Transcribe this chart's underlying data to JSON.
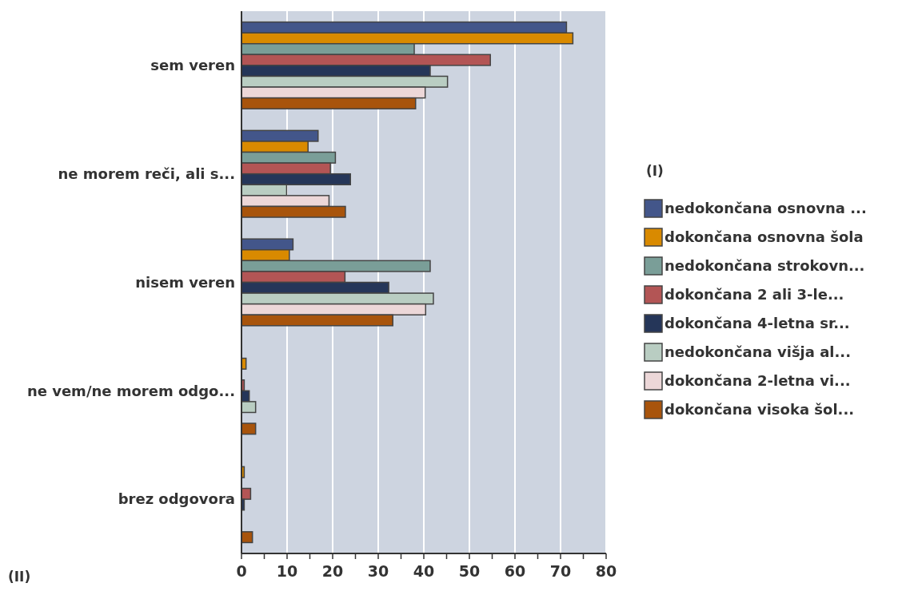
{
  "chart_data": {
    "type": "bar",
    "orientation": "horizontal",
    "categories": [
      "sem veren",
      "ne morem reči, ali s...",
      "nisem veren",
      "ne vem/ne morem odgo...",
      "brez odgovora"
    ],
    "series": [
      {
        "name": "nedokončana osnovna ...",
        "color": "#43568a",
        "values": [
          71.3,
          16.8,
          11.3,
          null,
          null
        ]
      },
      {
        "name": "dokončana osnovna šola",
        "color": "#d98a00",
        "values": [
          72.7,
          14.6,
          10.5,
          1.0,
          0.6
        ]
      },
      {
        "name": "nedokončana strokovn...",
        "color": "#7a9e98",
        "values": [
          37.9,
          20.6,
          41.4,
          null,
          null
        ]
      },
      {
        "name": "dokončana 2 ali 3-le...",
        "color": "#b35555",
        "values": [
          54.6,
          19.5,
          22.7,
          0.6,
          2.0
        ]
      },
      {
        "name": "dokončana 4-letna sr...",
        "color": "#253659",
        "values": [
          41.4,
          23.9,
          32.3,
          1.7,
          0.6
        ]
      },
      {
        "name": "nedokončana višja al...",
        "color": "#b9cdc2",
        "values": [
          45.2,
          9.9,
          42.1,
          3.1,
          null
        ]
      },
      {
        "name": "dokončana 2-letna vi...",
        "color": "#ecd7d8",
        "values": [
          40.3,
          19.2,
          40.4,
          null,
          null
        ]
      },
      {
        "name": "dokončana visoka šol...",
        "color": "#a8540c",
        "values": [
          38.2,
          22.8,
          33.2,
          3.1,
          2.4
        ]
      }
    ],
    "xlim": [
      0,
      80
    ],
    "xticks": [
      0,
      {
        "value": 5,
        "label": null
      },
      10,
      {
        "value": 15,
        "label": null
      },
      20,
      {
        "value": 25,
        "label": null
      },
      30,
      {
        "value": 35,
        "label": null
      },
      40,
      {
        "value": 45,
        "label": null
      },
      50,
      {
        "value": 55,
        "label": null
      },
      60,
      {
        "value": 65,
        "label": null
      },
      70,
      {
        "value": 75,
        "label": null
      },
      80
    ],
    "grid": "x",
    "legend": "right",
    "legend_title": "(I)",
    "annotations": [
      "(II)"
    ]
  }
}
